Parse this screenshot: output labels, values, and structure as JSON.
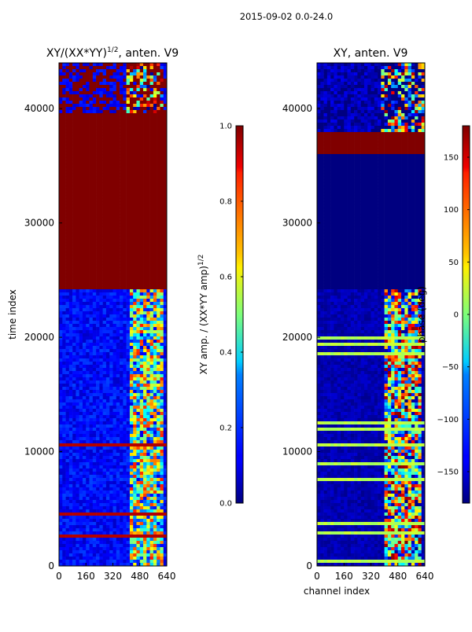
{
  "suptitle": "2015-09-02 0.0-24.0",
  "chart_data": [
    {
      "type": "heatmap",
      "title_main": "XY/(XX*YY)",
      "title_exp": "1/2",
      "title_tail": ", anten. V9",
      "xlabel": "",
      "ylabel": "time index",
      "xlim": [
        0,
        640
      ],
      "ylim": [
        0,
        44000
      ],
      "xticks": [
        0,
        160,
        320,
        480,
        640
      ],
      "yticks": [
        0,
        10000,
        20000,
        30000,
        40000
      ],
      "colorbar": {
        "label_main": "XY amp. / (XX*YY amp)",
        "label_exp": "1/2",
        "range": [
          0.0,
          1.0
        ],
        "ticks": [
          "0.0",
          "0.2",
          "0.4",
          "0.6",
          "0.8",
          "1.0"
        ],
        "tick_values": [
          0.0,
          0.2,
          0.4,
          0.6,
          0.8,
          1.0
        ]
      },
      "regions": [
        {
          "y0": 0,
          "y1": 24300,
          "description": "mostly low (~0.1) with noisy high-value columns near channels 420-620"
        },
        {
          "y0": 24300,
          "y1": 39700,
          "value": 1.0
        },
        {
          "y0": 39700,
          "y1": 44000,
          "description": "mixed high/low rows"
        }
      ]
    },
    {
      "type": "heatmap",
      "title": "XY, anten. V9",
      "xlabel": "channel index",
      "ylabel": "",
      "xlim": [
        0,
        640
      ],
      "ylim": [
        0,
        44000
      ],
      "xticks": [
        0,
        160,
        320,
        480,
        640
      ],
      "yticks": [
        0,
        10000,
        20000,
        30000,
        40000
      ],
      "colorbar": {
        "label": "phase (deg)",
        "range": [
          -180,
          180
        ],
        "ticks": [
          "−150",
          "−100",
          "−50",
          "0",
          "50",
          "100",
          "150"
        ],
        "tick_values": [
          -150,
          -100,
          -50,
          0,
          50,
          100,
          150
        ]
      },
      "regions": [
        {
          "y0": 0,
          "y1": 24300,
          "description": "mostly near -170 deg with varying phase columns near channels 400-620"
        },
        {
          "y0": 24300,
          "y1": 36000,
          "value": -180
        },
        {
          "y0": 36000,
          "y1": 38000,
          "value": 180
        },
        {
          "y0": 38000,
          "y1": 44000,
          "description": "mixed phase rows"
        }
      ]
    }
  ]
}
